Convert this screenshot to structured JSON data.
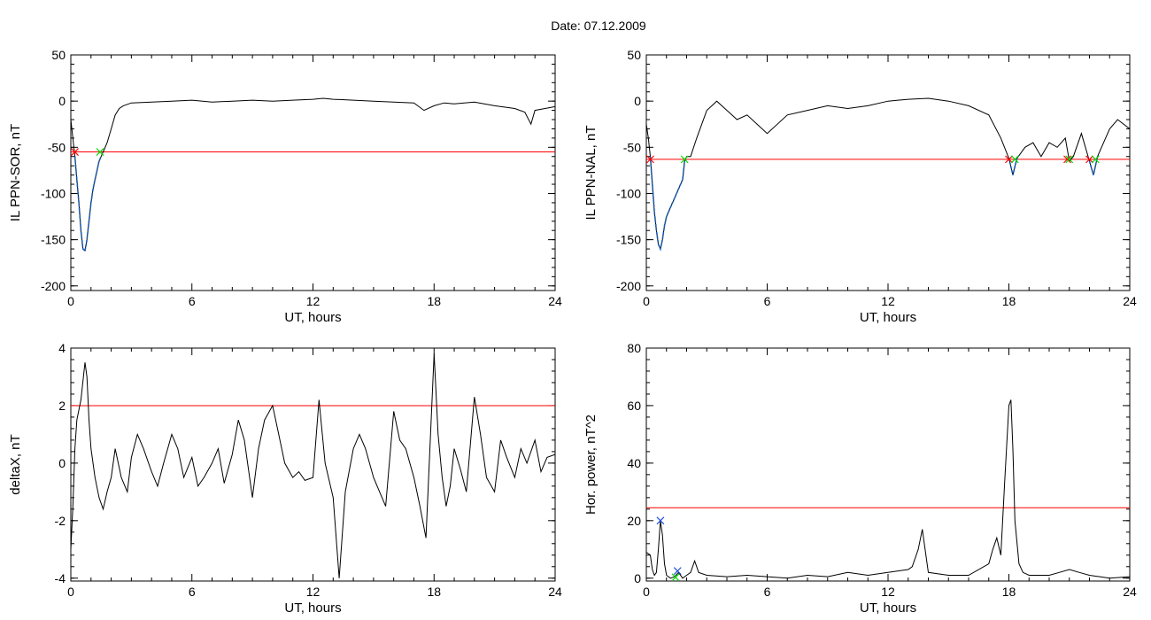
{
  "figure": {
    "title": "Date:  07.12.2009"
  },
  "chart_data": [
    {
      "type": "line",
      "ylabel": "IL PPN-SOR, nT",
      "xlabel": "UT, hours",
      "xlim": [
        0,
        24
      ],
      "ylim": [
        -205,
        50
      ],
      "xticks": [
        "0",
        "6",
        "12",
        "18",
        "24"
      ],
      "xtick_values": [
        0,
        6,
        12,
        18,
        24
      ],
      "yticks": [
        "50",
        "0",
        "-50",
        "-100",
        "-150",
        "-200"
      ],
      "ytick_values": [
        50,
        0,
        -50,
        -100,
        -150,
        -200
      ],
      "threshold": -55,
      "threshold_color": "#ff0000",
      "series_colors": {
        "main": "#000000",
        "highlight": "#1560bd"
      },
      "x": [
        0,
        0.1,
        0.2,
        0.3,
        0.4,
        0.5,
        0.6,
        0.7,
        0.8,
        0.9,
        1.0,
        1.1,
        1.2,
        1.3,
        1.4,
        1.5,
        1.6,
        1.8,
        2.0,
        2.2,
        2.4,
        2.6,
        3,
        4,
        5,
        6,
        7,
        8,
        9,
        10,
        11,
        12,
        12.5,
        13,
        14,
        15,
        16,
        17,
        17.5,
        18,
        18.5,
        19,
        20,
        21,
        22,
        22.5,
        22.8,
        23,
        23.5,
        24
      ],
      "values": [
        -20,
        -40,
        -60,
        -85,
        -110,
        -140,
        -160,
        -162,
        -150,
        -130,
        -110,
        -95,
        -85,
        -75,
        -65,
        -60,
        -55,
        -45,
        -30,
        -15,
        -8,
        -5,
        -2,
        -1,
        0,
        1,
        -1,
        0,
        1,
        0,
        1,
        2,
        3,
        2,
        1,
        0,
        -1,
        -2,
        -10,
        -5,
        -2,
        -3,
        -1,
        -5,
        -8,
        -12,
        -25,
        -10,
        -8,
        -6
      ],
      "highlight": {
        "x_start": 0.2,
        "x_end": 1.5
      },
      "markers": [
        {
          "x": 0.2,
          "y": -55,
          "color": "#ff0000",
          "symbol": "x"
        },
        {
          "x": 1.45,
          "y": -55,
          "color": "#00dd00",
          "symbol": "x"
        }
      ]
    },
    {
      "type": "line",
      "ylabel": "IL PPN-NAL, nT",
      "xlabel": "UT, hours",
      "xlim": [
        0,
        24
      ],
      "ylim": [
        -205,
        50
      ],
      "xticks": [
        "0",
        "6",
        "12",
        "18",
        "24"
      ],
      "xtick_values": [
        0,
        6,
        12,
        18,
        24
      ],
      "yticks": [
        "50",
        "0",
        "-50",
        "-100",
        "-150",
        "-200"
      ],
      "ytick_values": [
        50,
        0,
        -50,
        -100,
        -150,
        -200
      ],
      "threshold": -63,
      "threshold_color": "#ff0000",
      "series_colors": {
        "main": "#000000",
        "highlight": "#1560bd"
      },
      "x": [
        0,
        0.1,
        0.2,
        0.3,
        0.4,
        0.5,
        0.6,
        0.7,
        0.8,
        0.9,
        1.0,
        1.2,
        1.4,
        1.6,
        1.8,
        1.9,
        2.0,
        2.2,
        2.5,
        3,
        3.5,
        4,
        4.5,
        5,
        5.5,
        6,
        7,
        8,
        9,
        10,
        11,
        12,
        13,
        14,
        15,
        16,
        17,
        17.6,
        18,
        18.2,
        18.4,
        18.8,
        19.2,
        19.6,
        20,
        20.4,
        20.8,
        21,
        21.2,
        21.6,
        22,
        22.2,
        22.4,
        22.8,
        23,
        23.4,
        24
      ],
      "values": [
        -25,
        -40,
        -60,
        -90,
        -120,
        -140,
        -155,
        -160,
        -150,
        -135,
        -125,
        -115,
        -105,
        -95,
        -85,
        -65,
        -60,
        -60,
        -40,
        -10,
        0,
        -10,
        -20,
        -15,
        -25,
        -35,
        -15,
        -10,
        -5,
        -8,
        -5,
        0,
        2,
        3,
        0,
        -5,
        -15,
        -40,
        -62,
        -80,
        -62,
        -50,
        -45,
        -60,
        -45,
        -50,
        -40,
        -65,
        -60,
        -35,
        -65,
        -80,
        -60,
        -40,
        -30,
        -20,
        -30
      ],
      "highlights": [
        {
          "x_start": 0.2,
          "x_end": 1.95
        },
        {
          "x_start": 17.9,
          "x_end": 18.4
        },
        {
          "x_start": 20.9,
          "x_end": 21.1
        },
        {
          "x_start": 21.8,
          "x_end": 22.4
        }
      ],
      "markers": [
        {
          "x": 0.2,
          "y": -63,
          "color": "#ff0000",
          "symbol": "x"
        },
        {
          "x": 1.9,
          "y": -63,
          "color": "#00dd00",
          "symbol": "x"
        },
        {
          "x": 18.0,
          "y": -63,
          "color": "#ff0000",
          "symbol": "x"
        },
        {
          "x": 18.3,
          "y": -63,
          "color": "#00dd00",
          "symbol": "x"
        },
        {
          "x": 20.9,
          "y": -63,
          "color": "#ff0000",
          "symbol": "x"
        },
        {
          "x": 21.0,
          "y": -63,
          "color": "#00dd00",
          "symbol": "x"
        },
        {
          "x": 22.0,
          "y": -63,
          "color": "#ff0000",
          "symbol": "x"
        },
        {
          "x": 22.3,
          "y": -63,
          "color": "#00dd00",
          "symbol": "x"
        }
      ]
    },
    {
      "type": "line",
      "ylabel": "deltaX, nT",
      "xlabel": "UT, hours",
      "xlim": [
        0,
        24
      ],
      "ylim": [
        -4.1,
        4
      ],
      "xticks": [
        "0",
        "6",
        "12",
        "18",
        "24"
      ],
      "xtick_values": [
        0,
        6,
        12,
        18,
        24
      ],
      "yticks": [
        "4",
        "2",
        "0",
        "-2",
        "-4"
      ],
      "ytick_values": [
        4,
        2,
        0,
        -2,
        -4
      ],
      "threshold": 2,
      "threshold_color": "#ff0000",
      "series_colors": {
        "main": "#000000"
      },
      "x": [
        0,
        0.1,
        0.2,
        0.3,
        0.5,
        0.7,
        0.8,
        0.9,
        1.0,
        1.2,
        1.4,
        1.6,
        1.8,
        2.0,
        2.2,
        2.5,
        2.8,
        3.0,
        3.3,
        3.6,
        4.0,
        4.3,
        4.6,
        5.0,
        5.3,
        5.6,
        6.0,
        6.3,
        6.6,
        7.0,
        7.3,
        7.6,
        8.0,
        8.3,
        8.6,
        9.0,
        9.3,
        9.6,
        10.0,
        10.3,
        10.6,
        11.0,
        11.3,
        11.6,
        12.0,
        12.3,
        12.6,
        13.0,
        13.3,
        13.6,
        14.0,
        14.3,
        14.6,
        15.0,
        15.3,
        15.6,
        16.0,
        16.3,
        16.6,
        17.0,
        17.3,
        17.6,
        18.0,
        18.2,
        18.4,
        18.6,
        18.8,
        19.0,
        19.3,
        19.6,
        20.0,
        20.3,
        20.6,
        21.0,
        21.3,
        21.6,
        22.0,
        22.3,
        22.6,
        23.0,
        23.3,
        23.6,
        24.0
      ],
      "values": [
        -3.0,
        -1.5,
        0.5,
        1.5,
        2.2,
        3.5,
        3.0,
        1.5,
        0.5,
        -0.5,
        -1.2,
        -1.6,
        -1.0,
        -0.5,
        0.5,
        -0.5,
        -1.0,
        0.2,
        1.0,
        0.5,
        -0.3,
        -0.8,
        0.0,
        1.0,
        0.5,
        -0.5,
        0.2,
        -0.8,
        -0.5,
        0.0,
        0.5,
        -0.7,
        0.3,
        1.5,
        0.8,
        -1.2,
        0.5,
        1.5,
        2.0,
        1.0,
        0.0,
        -0.5,
        -0.3,
        -0.6,
        -0.5,
        2.2,
        0.0,
        -1.2,
        -4.0,
        -1.0,
        0.5,
        1.0,
        0.5,
        -0.5,
        -1.0,
        -1.5,
        1.8,
        0.8,
        0.5,
        -0.5,
        -1.5,
        -2.6,
        3.8,
        1.0,
        -0.5,
        -1.5,
        -0.8,
        0.5,
        -0.2,
        -1.0,
        2.3,
        1.0,
        -0.5,
        -1.0,
        0.8,
        0.2,
        -0.5,
        0.5,
        0.0,
        0.8,
        -0.3,
        0.2,
        0.3
      ]
    },
    {
      "type": "line",
      "ylabel": "Hor. power, nT^2",
      "xlabel": "UT, hours",
      "xlim": [
        0,
        24
      ],
      "ylim": [
        -1,
        80
      ],
      "xticks": [
        "0",
        "6",
        "12",
        "18",
        "24"
      ],
      "xtick_values": [
        0,
        6,
        12,
        18,
        24
      ],
      "yticks": [
        "80",
        "60",
        "40",
        "20",
        "0"
      ],
      "ytick_values": [
        80,
        60,
        40,
        20,
        0
      ],
      "threshold": 24.5,
      "threshold_color": "#ff0000",
      "series_colors": {
        "main": "#000000"
      },
      "x": [
        0,
        0.2,
        0.3,
        0.4,
        0.5,
        0.6,
        0.7,
        0.8,
        0.9,
        1.0,
        1.2,
        1.4,
        1.6,
        1.8,
        2.0,
        2.2,
        2.4,
        2.6,
        3.0,
        4.0,
        5.0,
        6.0,
        7.0,
        8.0,
        9.0,
        10.0,
        11.0,
        12.0,
        13.0,
        13.2,
        13.5,
        13.7,
        14.0,
        15.0,
        16.0,
        17.0,
        17.2,
        17.4,
        17.6,
        17.8,
        18.0,
        18.1,
        18.2,
        18.3,
        18.5,
        18.7,
        19.0,
        20.0,
        20.5,
        21.0,
        21.5,
        22.0,
        23.0,
        24.0
      ],
      "values": [
        9,
        8,
        3,
        1,
        2,
        10,
        20,
        15,
        5,
        1,
        0,
        0.5,
        2,
        0,
        1,
        2,
        6,
        2,
        1,
        0.5,
        1,
        0.5,
        0,
        1,
        0.5,
        2,
        1,
        2,
        3,
        4,
        10,
        17,
        2,
        1,
        1,
        5,
        10,
        14,
        8,
        35,
        60,
        62,
        45,
        20,
        5,
        2,
        1,
        1,
        2,
        3,
        2,
        1,
        0,
        0.5
      ],
      "markers": [
        {
          "x": 0.7,
          "y": 20,
          "color": "#1f4fdd",
          "symbol": "x"
        },
        {
          "x": 1.45,
          "y": 0.3,
          "color": "#00dd00",
          "symbol": "x"
        },
        {
          "x": 1.55,
          "y": 2.5,
          "color": "#1f4fdd",
          "symbol": "x"
        }
      ]
    }
  ]
}
